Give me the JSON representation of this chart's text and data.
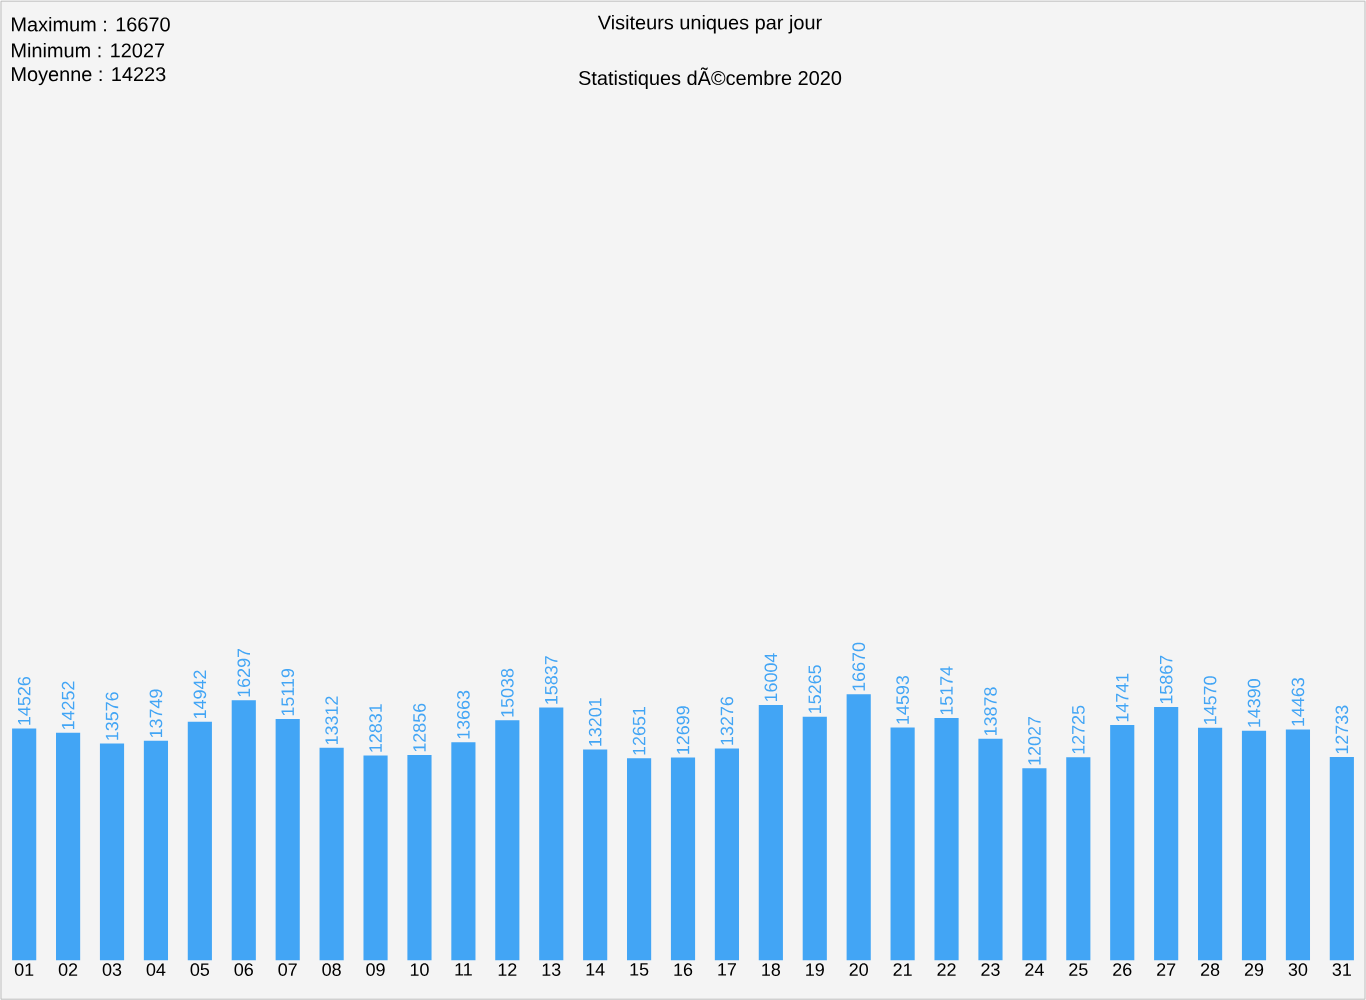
{
  "chart_data": {
    "type": "bar",
    "title": "Visiteurs uniques par jour",
    "subtitle": "Statistiques dÃ©cembre 2020",
    "annotations": [
      "Maximum : 16670",
      "Minimum : 12027",
      "Moyenne : 14223"
    ],
    "categories": [
      "01",
      "02",
      "03",
      "04",
      "05",
      "06",
      "07",
      "08",
      "09",
      "10",
      "11",
      "12",
      "13",
      "14",
      "15",
      "16",
      "17",
      "18",
      "19",
      "20",
      "21",
      "22",
      "23",
      "24",
      "25",
      "26",
      "27",
      "28",
      "29",
      "30",
      "31"
    ],
    "values": [
      14526,
      14252,
      13576,
      13749,
      14942,
      16297,
      15119,
      13312,
      12831,
      12856,
      13663,
      15038,
      15837,
      13201,
      12651,
      12699,
      13276,
      16004,
      15265,
      16670,
      14593,
      15174,
      13878,
      12027,
      12725,
      14741,
      15867,
      14570,
      14390,
      14463,
      12733
    ],
    "color": "#42a5f5",
    "data_labels": true
  }
}
